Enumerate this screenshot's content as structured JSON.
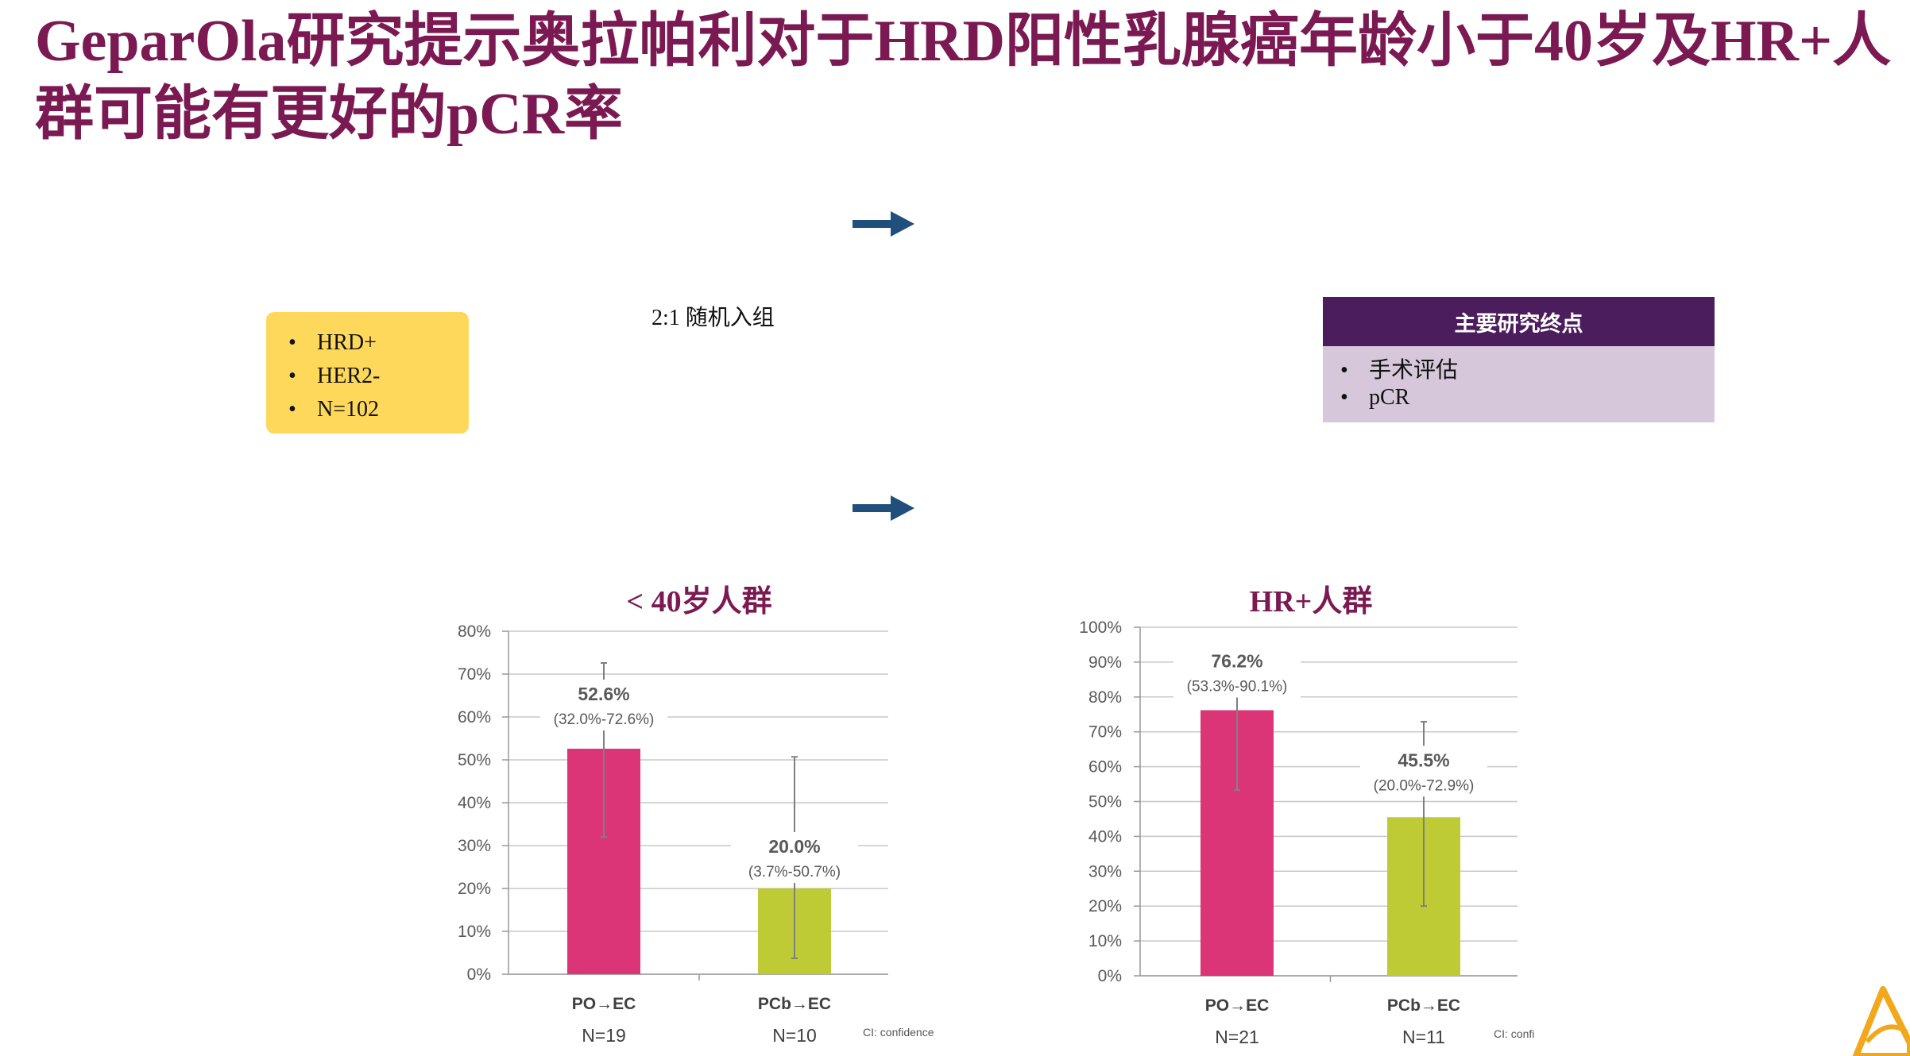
{
  "title": "GeparOla研究提示奥拉帕利对于HRD阳性乳腺癌年龄小于40岁及HR+人群可能有更好的pCR率",
  "population": {
    "items": [
      "HRD+",
      "HER2-",
      "N=102"
    ]
  },
  "randomization_label": "2:1 随机入组",
  "endpoint": {
    "header": "主要研究终点",
    "items": [
      "手术评估",
      "pCR"
    ]
  },
  "icons": {
    "arrow": "right-arrow-icon",
    "logo": "company-logo-icon"
  },
  "colors": {
    "title": "#7b1a52",
    "bar_po": "#db3577",
    "bar_pcb": "#bfcb35",
    "arrow": "#1f4f7a"
  },
  "chart_data": [
    {
      "type": "bar",
      "title": "< 40岁人群",
      "categories": [
        "PO→EC",
        "PCb→EC"
      ],
      "n_labels": [
        "N=19",
        "N=10"
      ],
      "values": [
        52.6,
        20.0
      ],
      "value_labels": [
        "52.6%",
        "20.0%"
      ],
      "ci": [
        [
          32.0,
          72.6
        ],
        [
          3.7,
          50.7
        ]
      ],
      "ci_labels": [
        "(32.0%-72.6%)",
        "(3.7%-50.7%)"
      ],
      "ylim": [
        0,
        80
      ],
      "yticks": [
        0,
        10,
        20,
        30,
        40,
        50,
        60,
        70,
        80
      ],
      "ytick_labels": [
        "0%",
        "10%",
        "20%",
        "30%",
        "40%",
        "50%",
        "60%",
        "70%",
        "80%"
      ],
      "note": "CI: confidence",
      "grid": true
    },
    {
      "type": "bar",
      "title": "HR+人群",
      "categories": [
        "PO→EC",
        "PCb→EC"
      ],
      "n_labels": [
        "N=21",
        "N=11"
      ],
      "values": [
        76.2,
        45.5
      ],
      "value_labels": [
        "76.2%",
        "45.5%"
      ],
      "ci": [
        [
          53.3,
          90.1
        ],
        [
          20.0,
          72.9
        ]
      ],
      "ci_labels": [
        "(53.3%-90.1%)",
        "(20.0%-72.9%)"
      ],
      "ylim": [
        0,
        100
      ],
      "yticks": [
        0,
        10,
        20,
        30,
        40,
        50,
        60,
        70,
        80,
        90,
        100
      ],
      "ytick_labels": [
        "0%",
        "10%",
        "20%",
        "30%",
        "40%",
        "50%",
        "60%",
        "70%",
        "80%",
        "90%",
        "100%"
      ],
      "note": "CI: confi",
      "grid": true
    }
  ]
}
